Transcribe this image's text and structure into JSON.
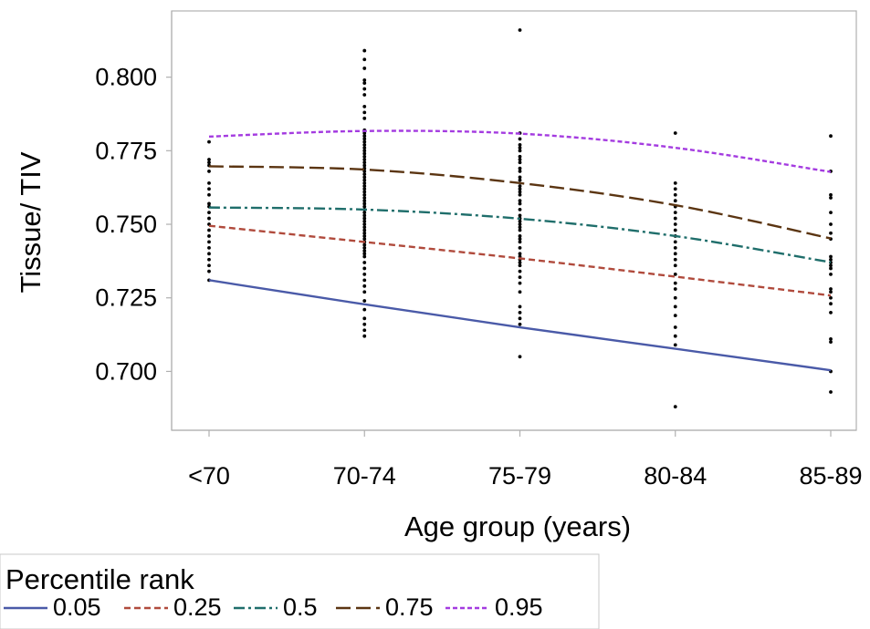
{
  "chart_data": {
    "type": "line",
    "xlabel": "Age group (years)",
    "ylabel": "Tissue/ TIV",
    "categories": [
      "<70",
      "70-74",
      "75-79",
      "80-84",
      "85-89"
    ],
    "yticks": [
      "0.700",
      "0.725",
      "0.750",
      "0.775",
      "0.800"
    ],
    "ytick_values": [
      0.7,
      0.725,
      0.75,
      0.775,
      0.8
    ],
    "ylim": [
      0.68,
      0.8225
    ],
    "grid": false,
    "legend": {
      "title": "Percentile rank",
      "placement": "bottom-left"
    },
    "series": [
      {
        "name": "0.05",
        "color": "#4a5aa8",
        "dash": "solid",
        "values": [
          0.731,
          0.7228,
          0.715,
          0.7077,
          0.7004
        ]
      },
      {
        "name": "0.25",
        "color": "#b04a3c",
        "dash": "dash",
        "values": [
          0.7495,
          0.744,
          0.7384,
          0.7322,
          0.7258
        ]
      },
      {
        "name": "0.5",
        "color": "#1f6e6b",
        "dash": "dashdot",
        "values": [
          0.7557,
          0.755,
          0.7519,
          0.746,
          0.7371
        ]
      },
      {
        "name": "0.75",
        "color": "#5b3512",
        "dash": "longdash",
        "values": [
          0.7697,
          0.7686,
          0.764,
          0.7565,
          0.7452
        ]
      },
      {
        "name": "0.95",
        "color": "#a43be0",
        "dash": "shortdash",
        "values": [
          0.7798,
          0.7817,
          0.7808,
          0.776,
          0.7678
        ]
      }
    ],
    "scatter": [
      {
        "category": "<70",
        "values": [
          0.731,
          0.734,
          0.736,
          0.738,
          0.74,
          0.742,
          0.744,
          0.746,
          0.748,
          0.75,
          0.752,
          0.754,
          0.756,
          0.757,
          0.76,
          0.762,
          0.764,
          0.768,
          0.77,
          0.771,
          0.772,
          0.778
        ]
      },
      {
        "category": "70-74",
        "values": [
          0.712,
          0.714,
          0.716,
          0.718,
          0.721,
          0.724,
          0.727,
          0.729,
          0.731,
          0.733,
          0.735,
          0.737,
          0.739,
          0.74,
          0.741,
          0.742,
          0.743,
          0.744,
          0.745,
          0.746,
          0.747,
          0.748,
          0.749,
          0.75,
          0.751,
          0.752,
          0.753,
          0.754,
          0.755,
          0.756,
          0.757,
          0.758,
          0.759,
          0.76,
          0.761,
          0.762,
          0.763,
          0.764,
          0.765,
          0.766,
          0.767,
          0.768,
          0.769,
          0.77,
          0.771,
          0.772,
          0.773,
          0.774,
          0.775,
          0.776,
          0.777,
          0.778,
          0.779,
          0.78,
          0.781,
          0.782,
          0.786,
          0.788,
          0.79,
          0.794,
          0.796,
          0.798,
          0.799,
          0.803,
          0.806,
          0.809
        ]
      },
      {
        "category": "75-79",
        "values": [
          0.705,
          0.716,
          0.718,
          0.72,
          0.722,
          0.727,
          0.73,
          0.732,
          0.734,
          0.736,
          0.737,
          0.738,
          0.739,
          0.74,
          0.742,
          0.744,
          0.745,
          0.746,
          0.748,
          0.749,
          0.75,
          0.751,
          0.752,
          0.753,
          0.755,
          0.757,
          0.758,
          0.76,
          0.761,
          0.762,
          0.763,
          0.765,
          0.766,
          0.768,
          0.769,
          0.771,
          0.772,
          0.773,
          0.775,
          0.776,
          0.777,
          0.779,
          0.781,
          0.816
        ]
      },
      {
        "category": "80-84",
        "values": [
          0.688,
          0.709,
          0.712,
          0.715,
          0.719,
          0.722,
          0.725,
          0.728,
          0.73,
          0.733,
          0.736,
          0.738,
          0.74,
          0.742,
          0.744,
          0.746,
          0.748,
          0.75,
          0.752,
          0.754,
          0.756,
          0.758,
          0.76,
          0.762,
          0.764,
          0.781
        ]
      },
      {
        "category": "85-89",
        "values": [
          0.693,
          0.7,
          0.71,
          0.711,
          0.72,
          0.723,
          0.725,
          0.727,
          0.728,
          0.733,
          0.735,
          0.736,
          0.737,
          0.738,
          0.739,
          0.745,
          0.747,
          0.75,
          0.754,
          0.759,
          0.76,
          0.768,
          0.78
        ]
      }
    ]
  }
}
